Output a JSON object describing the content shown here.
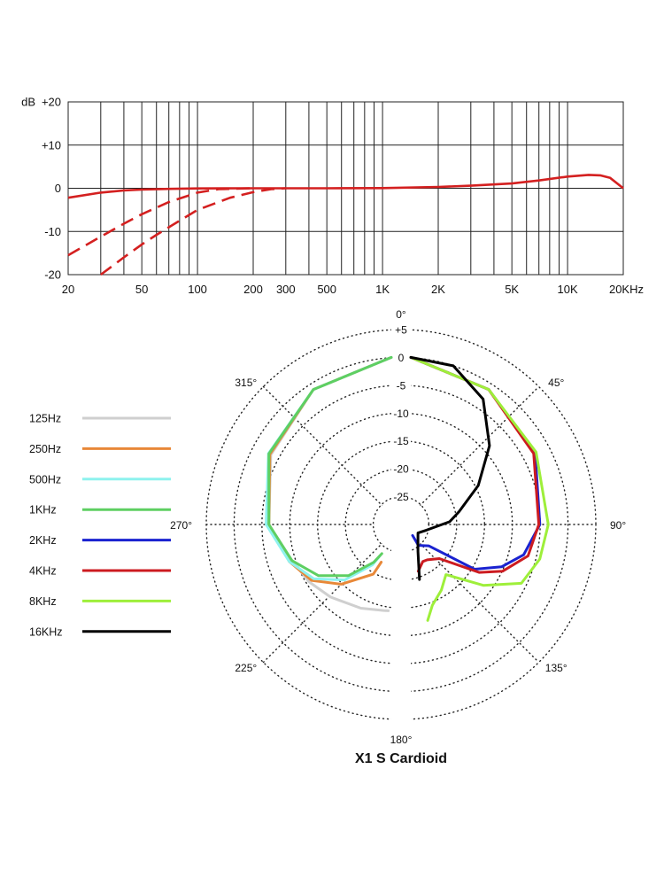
{
  "chart_data": [
    {
      "type": "line",
      "title": "",
      "xscale": "log",
      "xlim": [
        20,
        20000
      ],
      "ylim": [
        -20,
        20
      ],
      "ylabel": "dB",
      "x_ticks": [
        {
          "v": 20,
          "label": "20"
        },
        {
          "v": 50,
          "label": "50"
        },
        {
          "v": 100,
          "label": "100"
        },
        {
          "v": 200,
          "label": "200"
        },
        {
          "v": 300,
          "label": "300"
        },
        {
          "v": 500,
          "label": "500"
        },
        {
          "v": 1000,
          "label": "1K"
        },
        {
          "v": 2000,
          "label": "2K"
        },
        {
          "v": 5000,
          "label": "5K"
        },
        {
          "v": 10000,
          "label": "10K"
        },
        {
          "v": 20000,
          "label": "20KHz"
        }
      ],
      "y_ticks": [
        {
          "v": 20,
          "label": "+20"
        },
        {
          "v": 10,
          "label": "+10"
        },
        {
          "v": 0,
          "label": "0"
        },
        {
          "v": -10,
          "label": "-10"
        },
        {
          "v": -20,
          "label": "-20"
        }
      ],
      "grid_x": [
        20,
        30,
        40,
        50,
        60,
        70,
        80,
        90,
        100,
        200,
        300,
        400,
        500,
        600,
        700,
        800,
        900,
        1000,
        2000,
        3000,
        4000,
        5000,
        6000,
        7000,
        8000,
        9000,
        10000,
        20000
      ],
      "grid": true,
      "color": "#d42020",
      "series": [
        {
          "style": "solid",
          "points": [
            [
              20,
              -2.2
            ],
            [
              30,
              -1
            ],
            [
              40,
              -0.5
            ],
            [
              50,
              -0.3
            ],
            [
              70,
              -0.15
            ],
            [
              100,
              -0.05
            ],
            [
              200,
              0
            ],
            [
              500,
              0
            ],
            [
              1000,
              0.05
            ],
            [
              2000,
              0.3
            ],
            [
              3000,
              0.6
            ],
            [
              5000,
              1.1
            ],
            [
              7000,
              1.8
            ],
            [
              10000,
              2.7
            ],
            [
              13000,
              3.1
            ],
            [
              15000,
              3
            ],
            [
              17000,
              2.4
            ],
            [
              20000,
              0
            ]
          ]
        },
        {
          "style": "dashed",
          "points": [
            [
              20,
              -15.5
            ],
            [
              30,
              -11.2
            ],
            [
              40,
              -8.2
            ],
            [
              50,
              -6
            ],
            [
              70,
              -3.2
            ],
            [
              100,
              -1
            ],
            [
              130,
              -0.2
            ],
            [
              200,
              0
            ]
          ]
        },
        {
          "style": "dashed",
          "points": [
            [
              30,
              -20
            ],
            [
              40,
              -16
            ],
            [
              50,
              -13
            ],
            [
              60,
              -10.8
            ],
            [
              80,
              -7.5
            ],
            [
              100,
              -5
            ],
            [
              150,
              -2.2
            ],
            [
              200,
              -0.9
            ],
            [
              250,
              -0.2
            ],
            [
              300,
              0
            ]
          ]
        }
      ]
    },
    {
      "type": "polar",
      "title": "X1 S  Cardioid",
      "radial_ticks": [
        {
          "v": 5,
          "label": "+5"
        },
        {
          "v": 0,
          "label": "0"
        },
        {
          "v": -5,
          "label": "-5"
        },
        {
          "v": -10,
          "label": "-10"
        },
        {
          "v": -15,
          "label": "-15"
        },
        {
          "v": -20,
          "label": "-20"
        },
        {
          "v": -25,
          "label": "-25"
        }
      ],
      "rlim": [
        -30,
        5
      ],
      "angle_labels": [
        {
          "angle": 0,
          "label": "0°"
        },
        {
          "angle": 45,
          "label": "45°"
        },
        {
          "angle": 90,
          "label": "90°"
        },
        {
          "angle": 135,
          "label": "135°"
        },
        {
          "angle": 180,
          "label": "180°"
        },
        {
          "angle": 225,
          "label": "225°"
        },
        {
          "angle": 270,
          "label": "270°"
        },
        {
          "angle": 315,
          "label": "315°"
        }
      ],
      "series": [
        {
          "name": "125Hz",
          "color": "#cfcfcf",
          "side": "left",
          "points": [
            [
              0,
              0
            ],
            [
              30,
              -2
            ],
            [
              60,
              -5
            ],
            [
              90,
              -8
            ],
            [
              110,
              -11
            ],
            [
              125,
              -12
            ],
            [
              140,
              -13
            ],
            [
              160,
              -14
            ],
            [
              175,
              -14.5
            ],
            [
              178,
              -14.5
            ]
          ]
        },
        {
          "name": "250Hz",
          "color": "#e88838",
          "side": "left",
          "points": [
            [
              0,
              0
            ],
            [
              30,
              -2
            ],
            [
              60,
              -4.8
            ],
            [
              90,
              -8
            ],
            [
              110,
              -10.5
            ],
            [
              125,
              -12.5
            ],
            [
              140,
              -16
            ],
            [
              160,
              -20.5
            ],
            [
              165,
              -23
            ]
          ]
        },
        {
          "name": "500Hz",
          "color": "#8ef2ee",
          "side": "left",
          "points": [
            [
              0,
              0
            ],
            [
              30,
              -2
            ],
            [
              60,
              -4.5
            ],
            [
              90,
              -7.5
            ],
            [
              110,
              -10.5
            ],
            [
              125,
              -13
            ],
            [
              140,
              -17
            ],
            [
              155,
              -22
            ],
            [
              160,
              -24
            ]
          ]
        },
        {
          "name": "1KHz",
          "color": "#5ecf62",
          "side": "left",
          "points": [
            [
              0,
              0
            ],
            [
              30,
              -2
            ],
            [
              60,
              -4.6
            ],
            [
              90,
              -8
            ],
            [
              110,
              -11
            ],
            [
              125,
              -14
            ],
            [
              140,
              -18
            ],
            [
              155,
              -22.5
            ],
            [
              162,
              -24.5
            ]
          ]
        },
        {
          "name": "2KHz",
          "color": "#1a22d0",
          "side": "right",
          "points": [
            [
              0,
              0
            ],
            [
              30,
              -2
            ],
            [
              60,
              -4.2
            ],
            [
              90,
              -6.8
            ],
            [
              105,
              -9
            ],
            [
              115,
              -12
            ],
            [
              125,
              -16
            ],
            [
              140,
              -25
            ],
            [
              160,
              -26
            ],
            [
              171,
              -28
            ]
          ]
        },
        {
          "name": "4KHz",
          "color": "#cc1b20",
          "side": "right",
          "points": [
            [
              0,
              0
            ],
            [
              30,
              -2
            ],
            [
              60,
              -4.5
            ],
            [
              90,
              -7
            ],
            [
              105,
              -8.2
            ],
            [
              117,
              -11.5
            ],
            [
              125,
              -15
            ],
            [
              140,
              -22
            ],
            [
              155,
              -23
            ],
            [
              162,
              -23
            ],
            [
              171,
              -21.5
            ]
          ]
        },
        {
          "name": "8KHz",
          "color": "#9eef3a",
          "side": "right",
          "points": [
            [
              0,
              0
            ],
            [
              30,
              -2
            ],
            [
              60,
              -4
            ],
            [
              90,
              -5.3
            ],
            [
              105,
              -6
            ],
            [
              118,
              -7.5
            ],
            [
              130,
              -13
            ],
            [
              145,
              -19
            ],
            [
              155,
              -17
            ],
            [
              165,
              -15
            ],
            [
              170,
              -12.5
            ]
          ]
        },
        {
          "name": "16KHz",
          "color": "#000000",
          "side": "right",
          "points": [
            [
              0,
              0
            ],
            [
              15,
              -0.5
            ],
            [
              30,
              -4
            ],
            [
              45,
              -10
            ],
            [
              60,
              -16
            ],
            [
              75,
              -21
            ],
            [
              86,
              -23
            ],
            [
              110,
              -27
            ],
            [
              140,
              -28
            ],
            [
              165,
              -25
            ],
            [
              171,
              -20
            ]
          ]
        }
      ]
    }
  ]
}
